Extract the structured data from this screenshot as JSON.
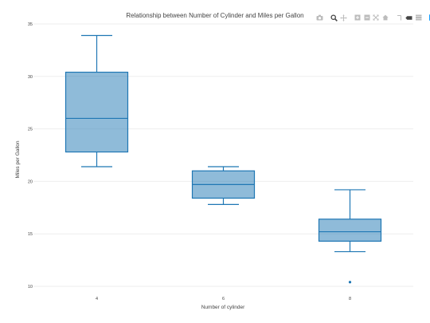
{
  "toolbar": {
    "buttons": [
      {
        "name": "camera-icon",
        "title": "Download plot as a png"
      },
      {
        "name": "zoom-icon",
        "title": "Zoom"
      },
      {
        "name": "pan-icon",
        "title": "Pan"
      },
      {
        "name": "zoom-in-icon",
        "title": "Zoom in"
      },
      {
        "name": "zoom-out-icon",
        "title": "Zoom out"
      },
      {
        "name": "autoscale-icon",
        "title": "Autoscale"
      },
      {
        "name": "home-icon",
        "title": "Reset axes"
      },
      {
        "name": "spike-lines-icon",
        "title": "Toggle Spike Lines"
      },
      {
        "name": "hover-closest-icon",
        "title": "Show closest data on hover"
      },
      {
        "name": "hover-compare-icon",
        "title": "Compare data on hover"
      },
      {
        "name": "plotly-logo-icon",
        "title": "Produced with Plotly"
      }
    ],
    "colors": {
      "icon": "#bcbcbc",
      "active": "#444444",
      "logo": "#119dff"
    }
  },
  "chart_data": {
    "type": "box",
    "title": "Relationship between Number of Cylinder and Miles per Gallon",
    "xlabel": "Number of cylinder",
    "ylabel": "Miles per Gallon",
    "categories": [
      "4",
      "6",
      "8"
    ],
    "ylim": [
      10,
      35
    ],
    "yticks": [
      10,
      15,
      20,
      25,
      30,
      35
    ],
    "grid": true,
    "legend": "none",
    "color": "#1f77b4",
    "fill": "rgba(31,119,180,0.5)",
    "boxes": [
      {
        "category": "4",
        "lowerfence": 21.4,
        "q1": 22.8,
        "median": 26.0,
        "q3": 30.4,
        "upperfence": 33.9,
        "outliers": []
      },
      {
        "category": "6",
        "lowerfence": 17.8,
        "q1": 18.4,
        "median": 19.7,
        "q3": 21.0,
        "upperfence": 21.4,
        "outliers": []
      },
      {
        "category": "8",
        "lowerfence": 13.3,
        "q1": 14.3,
        "median": 15.2,
        "q3": 16.4,
        "upperfence": 19.2,
        "outliers": [
          10.4
        ]
      }
    ]
  }
}
